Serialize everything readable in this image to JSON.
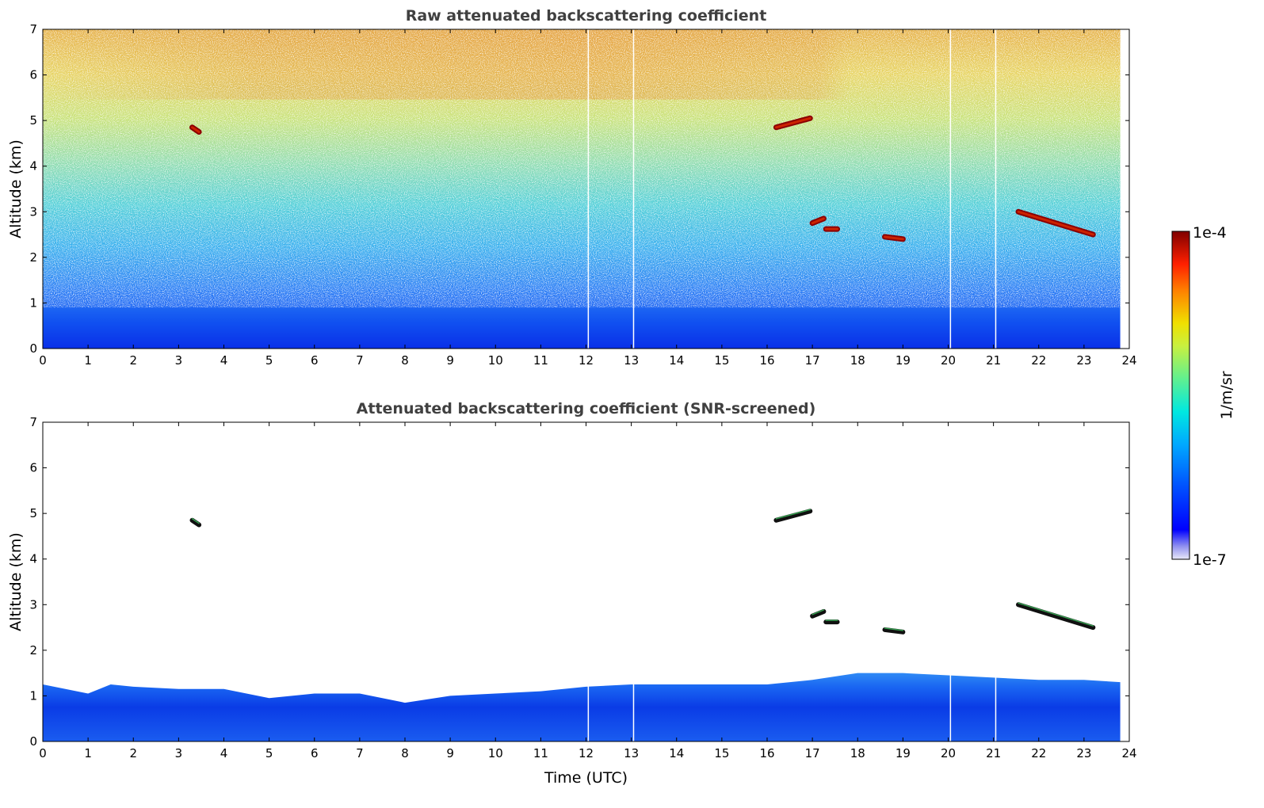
{
  "chart_data": [
    {
      "type": "heatmap",
      "title": "Raw attenuated backscattering coefficient",
      "xlabel": "",
      "ylabel": "Altitude (km)",
      "xlim": [
        0,
        24
      ],
      "ylim": [
        0,
        7
      ],
      "xticks": [
        "0",
        "1",
        "2",
        "3",
        "4",
        "5",
        "6",
        "7",
        "8",
        "9",
        "10",
        "11",
        "12",
        "13",
        "14",
        "15",
        "16",
        "17",
        "18",
        "19",
        "20",
        "21",
        "22",
        "23",
        "24"
      ],
      "yticks": [
        "0",
        "1",
        "2",
        "3",
        "4",
        "5",
        "6",
        "7"
      ],
      "data_gaps_utc": [
        12.05,
        13.05,
        20.05,
        21.05
      ],
      "data_end_utc": 23.8,
      "cloud_features": [
        {
          "time_start": 3.3,
          "time_end": 3.45,
          "alt_start": 4.85,
          "alt_end": 4.75
        },
        {
          "time_start": 16.2,
          "time_end": 16.95,
          "alt_start": 4.85,
          "alt_end": 5.05
        },
        {
          "time_start": 17.0,
          "time_end": 17.25,
          "alt_start": 2.75,
          "alt_end": 2.85
        },
        {
          "time_start": 17.3,
          "time_end": 17.55,
          "alt_start": 2.62,
          "alt_end": 2.62
        },
        {
          "time_start": 18.6,
          "time_end": 19.0,
          "alt_start": 2.45,
          "alt_end": 2.4
        },
        {
          "time_start": 21.55,
          "time_end": 23.2,
          "alt_start": 3.0,
          "alt_end": 2.5
        }
      ]
    },
    {
      "type": "heatmap",
      "title": "Attenuated backscattering coefficient (SNR-screened)",
      "xlabel": "Time (UTC)",
      "ylabel": "Altitude (km)",
      "xlim": [
        0,
        24
      ],
      "ylim": [
        0,
        7
      ],
      "xticks": [
        "0",
        "1",
        "2",
        "3",
        "4",
        "5",
        "6",
        "7",
        "8",
        "9",
        "10",
        "11",
        "12",
        "13",
        "14",
        "15",
        "16",
        "17",
        "18",
        "19",
        "20",
        "21",
        "22",
        "23",
        "24"
      ],
      "yticks": [
        "0",
        "1",
        "2",
        "3",
        "4",
        "5",
        "6",
        "7"
      ],
      "boundary_layer_top": [
        [
          0,
          1.25
        ],
        [
          1,
          1.05
        ],
        [
          1.5,
          1.25
        ],
        [
          2,
          1.2
        ],
        [
          3,
          1.15
        ],
        [
          4,
          1.15
        ],
        [
          5,
          0.95
        ],
        [
          6,
          1.05
        ],
        [
          7,
          1.05
        ],
        [
          8,
          0.85
        ],
        [
          9,
          1.0
        ],
        [
          10,
          1.05
        ],
        [
          11,
          1.1
        ],
        [
          12,
          1.2
        ],
        [
          13,
          1.25
        ],
        [
          14,
          1.25
        ],
        [
          15,
          1.25
        ],
        [
          16,
          1.25
        ],
        [
          17,
          1.35
        ],
        [
          18,
          1.5
        ],
        [
          19,
          1.5
        ],
        [
          20,
          1.45
        ],
        [
          21,
          1.4
        ],
        [
          22,
          1.35
        ],
        [
          23,
          1.35
        ],
        [
          23.8,
          1.3
        ]
      ]
    }
  ],
  "colorbar": {
    "label": "1/m/sr",
    "max_label": "1e-4",
    "min_label": "1e-7",
    "colormap": "jet"
  }
}
